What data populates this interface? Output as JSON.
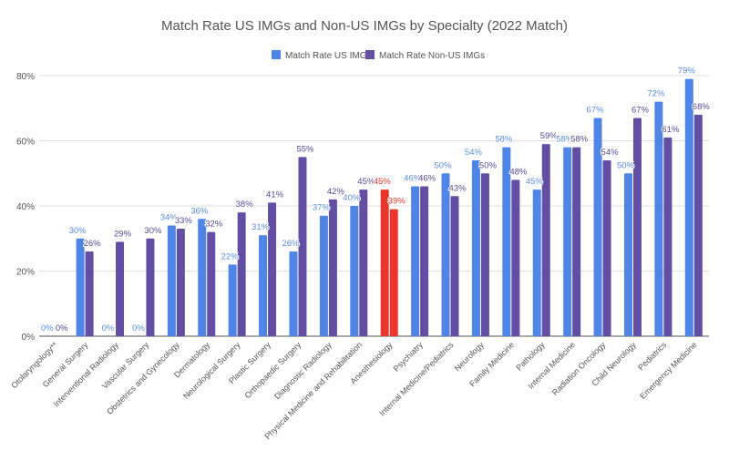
{
  "chart_data": {
    "type": "bar",
    "title": "Match Rate US IMGs and Non-US IMGs by Specialty (2022 Match)",
    "xlabel": "",
    "ylabel": "",
    "ylim": [
      0,
      80
    ],
    "yticks": [
      "0%",
      "20%",
      "40%",
      "60%",
      "80%"
    ],
    "grid": true,
    "legend_position": "top",
    "categories": [
      "Otolaryngology**",
      "General Surgery",
      "Interventional Radiology",
      "Vascular Surgery",
      "Obstetrics and Gynecology",
      "Dermatology",
      "Neurological Surgery",
      "Plastic Surgery",
      "Orthopaedic Surgery",
      "Diagnostic Radiology",
      "Physical Medicine and Rehabilitation",
      "Anesthesiology",
      "Psychiatry",
      "Internal Medicine/Pediatrics",
      "Neurology",
      "Family Medicine",
      "Pathology",
      "Internal Medicine",
      "Radiation Oncology",
      "Child Neurology",
      "Pediatrics",
      "Emergency Medicine"
    ],
    "highlighted_category": "Anesthesiology",
    "highlight_color": "#e8372a",
    "series": [
      {
        "name": "Match Rate US IMGs",
        "color": "#5085e8",
        "values": [
          0,
          30,
          0,
          0,
          34,
          36,
          22,
          31,
          26,
          37,
          40,
          45,
          46,
          50,
          54,
          58,
          45,
          58,
          67,
          50,
          72,
          79
        ]
      },
      {
        "name": "Match Rate Non-US IMGs",
        "color": "#624ea3",
        "values": [
          0,
          26,
          29,
          30,
          33,
          32,
          38,
          41,
          55,
          42,
          45,
          39,
          46,
          43,
          50,
          48,
          59,
          58,
          54,
          67,
          61,
          68
        ]
      }
    ]
  }
}
